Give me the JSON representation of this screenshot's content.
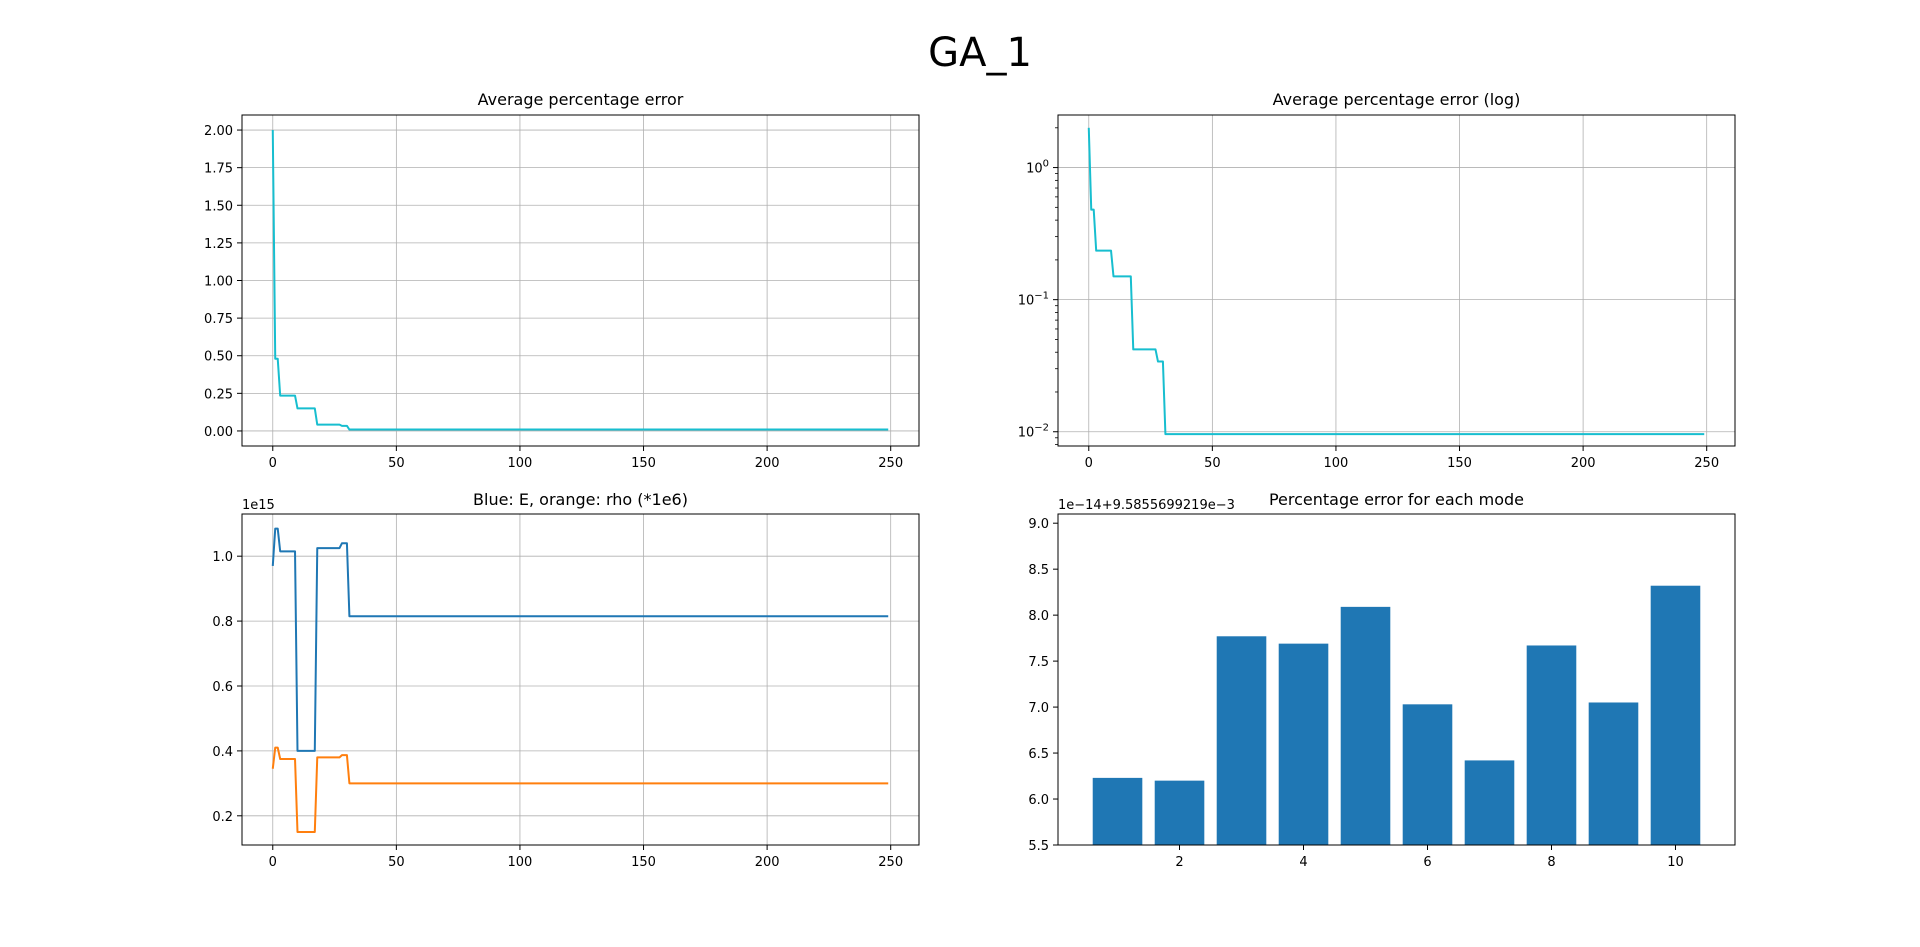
{
  "figure_title": "GA_1",
  "chart_data": [
    {
      "type": "line",
      "title": "Average percentage error",
      "xlabel": "",
      "ylabel": "",
      "xlim": [
        -12.45,
        261.45
      ],
      "ylim": [
        -0.1,
        2.1
      ],
      "xticks": [
        0,
        50,
        100,
        150,
        200,
        250
      ],
      "yticks": [
        0.0,
        0.25,
        0.5,
        0.75,
        1.0,
        1.25,
        1.5,
        1.75,
        2.0
      ],
      "ytick_labels": [
        "0.00",
        "0.25",
        "0.50",
        "0.75",
        "1.00",
        "1.25",
        "1.50",
        "1.75",
        "2.00"
      ],
      "grid": true,
      "series": [
        {
          "color": "#17becf",
          "x": [
            0,
            1,
            2,
            3,
            4,
            9,
            10,
            17,
            18,
            27,
            28,
            30,
            31,
            249
          ],
          "y": [
            2.0,
            0.48,
            0.48,
            0.235,
            0.235,
            0.235,
            0.15,
            0.15,
            0.042,
            0.042,
            0.034,
            0.034,
            0.0096,
            0.0096
          ]
        }
      ]
    },
    {
      "type": "line",
      "title": "Average percentage error (log)",
      "xlabel": "",
      "ylabel": "",
      "yscale": "log",
      "xlim": [
        -12.45,
        261.45
      ],
      "ylim": [
        0.0078,
        2.5
      ],
      "xticks": [
        0,
        50,
        100,
        150,
        200,
        250
      ],
      "yticks": [
        0.01,
        0.1,
        1
      ],
      "ytick_labels": [
        "10^-2",
        "10^-1",
        "10^0"
      ],
      "grid": true,
      "series": [
        {
          "color": "#17becf",
          "x": [
            0,
            1,
            2,
            3,
            4,
            9,
            10,
            17,
            18,
            27,
            28,
            30,
            31,
            249
          ],
          "y": [
            2.0,
            0.48,
            0.48,
            0.235,
            0.235,
            0.235,
            0.15,
            0.15,
            0.042,
            0.042,
            0.034,
            0.034,
            0.0096,
            0.0096
          ]
        }
      ]
    },
    {
      "type": "line",
      "title": "Blue: E, orange: rho (*1e6)",
      "xlabel": "",
      "ylabel": "",
      "y_offset_label": "1e15",
      "xlim": [
        -12.45,
        261.45
      ],
      "ylim": [
        0.11,
        1.13
      ],
      "xticks": [
        0,
        50,
        100,
        150,
        200,
        250
      ],
      "yticks": [
        0.2,
        0.4,
        0.6,
        0.8,
        1.0
      ],
      "ytick_labels": [
        "0.2",
        "0.4",
        "0.6",
        "0.8",
        "1.0"
      ],
      "grid": true,
      "series": [
        {
          "color": "#1f77b4",
          "x": [
            0,
            1,
            2,
            3,
            4,
            9,
            10,
            17,
            18,
            27,
            28,
            30,
            31,
            249
          ],
          "y": [
            0.97,
            1.085,
            1.085,
            1.015,
            1.015,
            1.015,
            0.4,
            0.4,
            1.025,
            1.025,
            1.04,
            1.04,
            0.815,
            0.815
          ]
        },
        {
          "color": "#ff7f0e",
          "x": [
            0,
            1,
            2,
            3,
            4,
            9,
            10,
            17,
            18,
            27,
            28,
            30,
            31,
            249
          ],
          "y": [
            0.345,
            0.41,
            0.41,
            0.375,
            0.375,
            0.375,
            0.15,
            0.15,
            0.38,
            0.38,
            0.387,
            0.387,
            0.3,
            0.3
          ]
        }
      ]
    },
    {
      "type": "bar",
      "title": "Percentage error for each mode",
      "xlabel": "",
      "ylabel": "",
      "y_offset_label": "1e−14+9.5855699219e−3",
      "xlim": [
        0.04,
        10.96
      ],
      "ylim": [
        5.5,
        9.1
      ],
      "xticks": [
        2,
        4,
        6,
        8,
        10
      ],
      "yticks": [
        5.5,
        6.0,
        6.5,
        7.0,
        7.5,
        8.0,
        8.5,
        9.0
      ],
      "ytick_labels": [
        "5.5",
        "6.0",
        "6.5",
        "7.0",
        "7.5",
        "8.0",
        "8.5",
        "9.0"
      ],
      "grid": false,
      "bar_width": 0.8,
      "color": "#1f77b4",
      "categories": [
        1,
        2,
        3,
        4,
        5,
        6,
        7,
        8,
        9,
        10
      ],
      "values": [
        6.23,
        6.2,
        7.77,
        7.69,
        8.09,
        7.03,
        6.42,
        7.67,
        7.05,
        8.32
      ]
    }
  ]
}
